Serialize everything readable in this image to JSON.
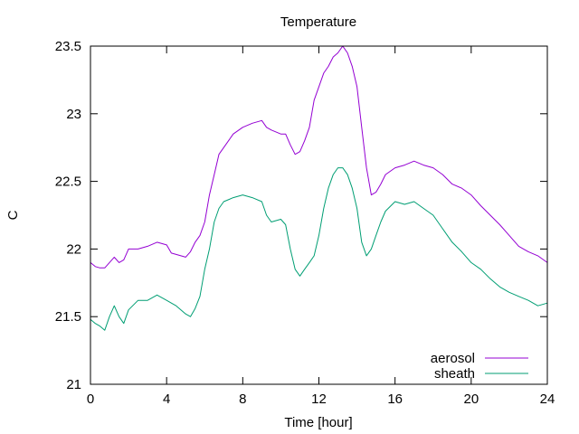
{
  "chart_data": {
    "type": "line",
    "title": "Temperature",
    "xlabel": "Time [hour]",
    "ylabel": "C",
    "xlim": [
      0,
      24
    ],
    "ylim": [
      21,
      23.5
    ],
    "xticks": [
      0,
      4,
      8,
      12,
      16,
      20,
      24
    ],
    "yticks": [
      21,
      21.5,
      22,
      22.5,
      23,
      23.5
    ],
    "xtick_labels": [
      "0",
      "4",
      "8",
      "12",
      "16",
      "20",
      "24"
    ],
    "ytick_labels": [
      "21",
      "21.5",
      "22",
      "22.5",
      "23",
      "23.5"
    ],
    "grid": false,
    "legend_position": "bottom-right",
    "series": [
      {
        "name": "aerosol",
        "color": "#9400d3",
        "x": [
          0,
          0.25,
          0.5,
          0.75,
          1,
          1.25,
          1.5,
          1.75,
          2,
          2.5,
          3,
          3.5,
          4,
          4.25,
          4.5,
          5,
          5.25,
          5.5,
          5.75,
          6,
          6.25,
          6.5,
          6.75,
          7,
          7.5,
          8,
          8.5,
          9,
          9.25,
          9.5,
          10,
          10.25,
          10.5,
          10.75,
          11,
          11.25,
          11.5,
          11.75,
          12,
          12.25,
          12.5,
          12.75,
          13,
          13.25,
          13.5,
          13.75,
          14,
          14.25,
          14.5,
          14.75,
          15,
          15.25,
          15.5,
          16,
          16.5,
          17,
          17.5,
          18,
          18.5,
          19,
          19.5,
          20,
          20.5,
          21,
          21.5,
          22,
          22.5,
          23,
          23.5,
          24
        ],
        "y": [
          21.9,
          21.87,
          21.86,
          21.86,
          21.9,
          21.94,
          21.9,
          21.92,
          22.0,
          22.0,
          22.02,
          22.05,
          22.03,
          21.97,
          21.96,
          21.94,
          21.98,
          22.05,
          22.1,
          22.2,
          22.4,
          22.55,
          22.7,
          22.75,
          22.85,
          22.9,
          22.93,
          22.95,
          22.9,
          22.88,
          22.85,
          22.85,
          22.77,
          22.7,
          22.72,
          22.8,
          22.9,
          23.1,
          23.2,
          23.3,
          23.35,
          23.42,
          23.45,
          23.5,
          23.45,
          23.35,
          23.2,
          22.9,
          22.6,
          22.4,
          22.42,
          22.48,
          22.55,
          22.6,
          22.62,
          22.65,
          22.62,
          22.6,
          22.55,
          22.48,
          22.45,
          22.4,
          22.32,
          22.25,
          22.18,
          22.1,
          22.02,
          21.98,
          21.95,
          21.9
        ]
      },
      {
        "name": "sheath",
        "color": "#009e73",
        "x": [
          0,
          0.25,
          0.5,
          0.75,
          1,
          1.25,
          1.5,
          1.75,
          2,
          2.5,
          3,
          3.5,
          4,
          4.25,
          4.5,
          5,
          5.25,
          5.5,
          5.75,
          6,
          6.25,
          6.5,
          6.75,
          7,
          7.5,
          8,
          8.5,
          9,
          9.25,
          9.5,
          10,
          10.25,
          10.5,
          10.75,
          11,
          11.25,
          11.5,
          11.75,
          12,
          12.25,
          12.5,
          12.75,
          13,
          13.25,
          13.5,
          13.75,
          14,
          14.25,
          14.5,
          14.75,
          15,
          15.25,
          15.5,
          16,
          16.5,
          17,
          17.5,
          18,
          18.5,
          19,
          19.5,
          20,
          20.5,
          21,
          21.5,
          22,
          22.5,
          23,
          23.5,
          24
        ],
        "y": [
          21.48,
          21.45,
          21.43,
          21.4,
          21.5,
          21.58,
          21.5,
          21.45,
          21.55,
          21.62,
          21.62,
          21.66,
          21.62,
          21.6,
          21.58,
          21.52,
          21.5,
          21.56,
          21.65,
          21.85,
          22.0,
          22.2,
          22.3,
          22.35,
          22.38,
          22.4,
          22.38,
          22.35,
          22.25,
          22.2,
          22.22,
          22.18,
          22.0,
          21.85,
          21.8,
          21.85,
          21.9,
          21.95,
          22.1,
          22.3,
          22.45,
          22.55,
          22.6,
          22.6,
          22.55,
          22.45,
          22.3,
          22.05,
          21.95,
          22.0,
          22.1,
          22.2,
          22.28,
          22.35,
          22.33,
          22.35,
          22.3,
          22.25,
          22.15,
          22.05,
          21.98,
          21.9,
          21.85,
          21.78,
          21.72,
          21.68,
          21.65,
          21.62,
          21.58,
          21.6
        ]
      }
    ]
  }
}
